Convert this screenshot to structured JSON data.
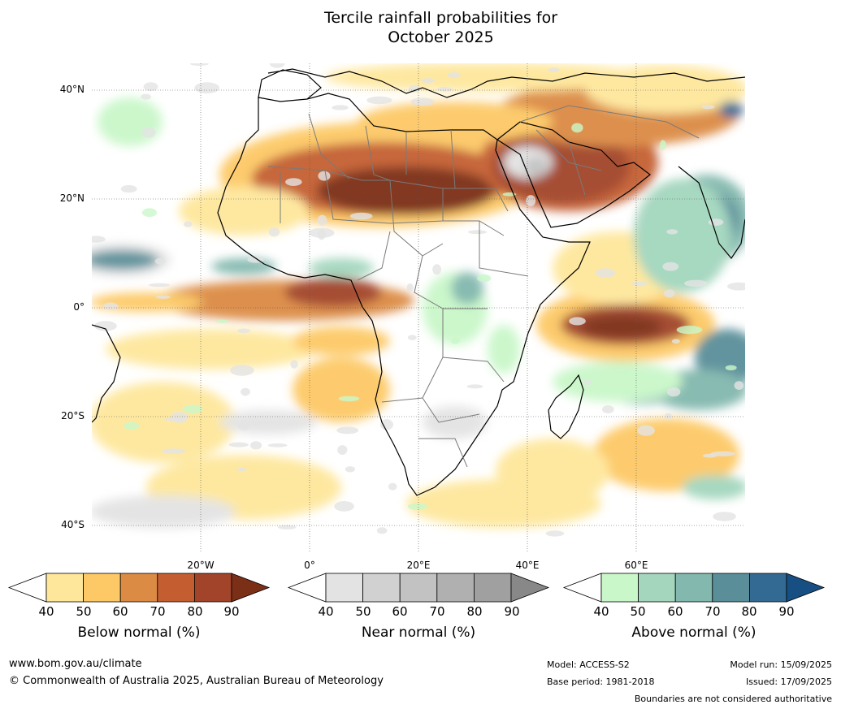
{
  "title": {
    "line1": "Tercile rainfall probabilities for",
    "line2": "October 2025"
  },
  "map": {
    "lat_labels": [
      "40°N",
      "20°N",
      "0°",
      "20°S",
      "40°S"
    ],
    "lon_labels": [
      "20°W",
      "0°",
      "20°E",
      "40°E",
      "60°E"
    ],
    "colors": {
      "below": [
        "#fee79b",
        "#fdc966",
        "#dc8b45",
        "#c45e31",
        "#a2442a",
        "#7b2f17"
      ],
      "near": [
        "#e3e3e3",
        "#d1d1d1",
        "#c2c2c2",
        "#b0b0b0",
        "#a0a0a0",
        "#888888"
      ],
      "above": [
        "#c9f7c9",
        "#a3d6bd",
        "#82b8ad",
        "#5a8f9a",
        "#336a94",
        "#184f82"
      ]
    }
  },
  "colorbars": [
    {
      "id": "below",
      "label": "Below normal (%)",
      "ticks": [
        "40",
        "50",
        "60",
        "70",
        "80",
        "90"
      ]
    },
    {
      "id": "near",
      "label": "Near normal (%)",
      "ticks": [
        "40",
        "50",
        "60",
        "70",
        "80",
        "90"
      ]
    },
    {
      "id": "above",
      "label": "Above normal (%)",
      "ticks": [
        "40",
        "50",
        "60",
        "70",
        "80",
        "90"
      ]
    }
  ],
  "footer": {
    "url": "www.bom.gov.au/climate",
    "copyright": "© Commonwealth of Australia 2025, Australian Bureau of Meteorology",
    "model": "Model: ACCESS-S2",
    "base_period": "Base period: 1981-2018",
    "model_run": "Model run: 15/09/2025",
    "issued": "Issued: 17/09/2025",
    "disclaimer": "Boundaries are not considered authoritative"
  }
}
